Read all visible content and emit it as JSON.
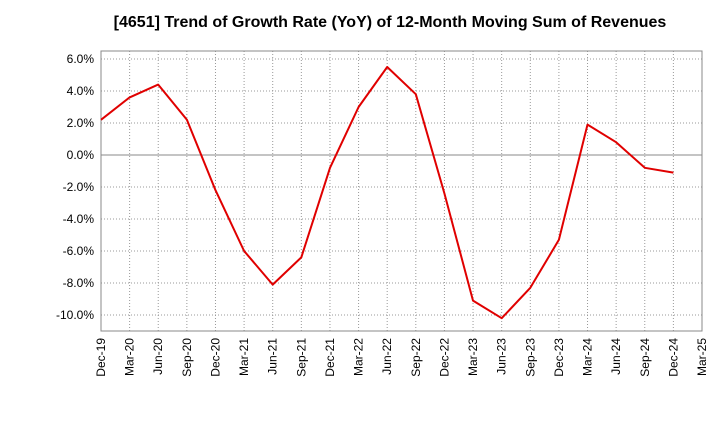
{
  "chart_data": {
    "type": "line",
    "title": "[4651]  Trend of Growth Rate (YoY) of 12-Month Moving Sum of Revenues",
    "xlabel": "",
    "ylabel": "",
    "ylim": [
      -11,
      6.5
    ],
    "y_ticks": [
      6,
      4,
      2,
      0,
      -2,
      -4,
      -6,
      -8,
      -10
    ],
    "y_tick_labels": [
      "6.0%",
      "4.0%",
      "2.0%",
      "0.0%",
      "-2.0%",
      "-4.0%",
      "-6.0%",
      "-8.0%",
      "-10.0%"
    ],
    "x_tick_labels": [
      "Dec-19",
      "Mar-20",
      "Jun-20",
      "Sep-20",
      "Dec-20",
      "Mar-21",
      "Jun-21",
      "Sep-21",
      "Dec-21",
      "Mar-22",
      "Jun-22",
      "Sep-22",
      "Dec-22",
      "Mar-23",
      "Jun-23",
      "Sep-23",
      "Dec-23",
      "Mar-24",
      "Jun-24",
      "Sep-24",
      "Dec-24",
      "Mar-25"
    ],
    "grid": true,
    "legend": "none",
    "series": [
      {
        "color": "#e00000",
        "x": [
          "Dec-19",
          "Mar-20",
          "Jun-20",
          "Sep-20",
          "Dec-20",
          "Mar-21",
          "Jun-21",
          "Sep-21",
          "Dec-21",
          "Mar-22",
          "Jun-22",
          "Sep-22",
          "Dec-22",
          "Mar-23",
          "Jun-23",
          "Sep-23",
          "Dec-23",
          "Mar-24",
          "Jun-24",
          "Sep-24",
          "Dec-24"
        ],
        "values": [
          2.2,
          3.6,
          4.4,
          2.2,
          -2.2,
          -6.0,
          -8.1,
          -6.4,
          -0.8,
          3.0,
          5.5,
          3.8,
          -2.4,
          -9.1,
          -10.2,
          -8.3,
          -5.3,
          1.9,
          0.8,
          -0.8,
          -1.1
        ]
      }
    ]
  }
}
